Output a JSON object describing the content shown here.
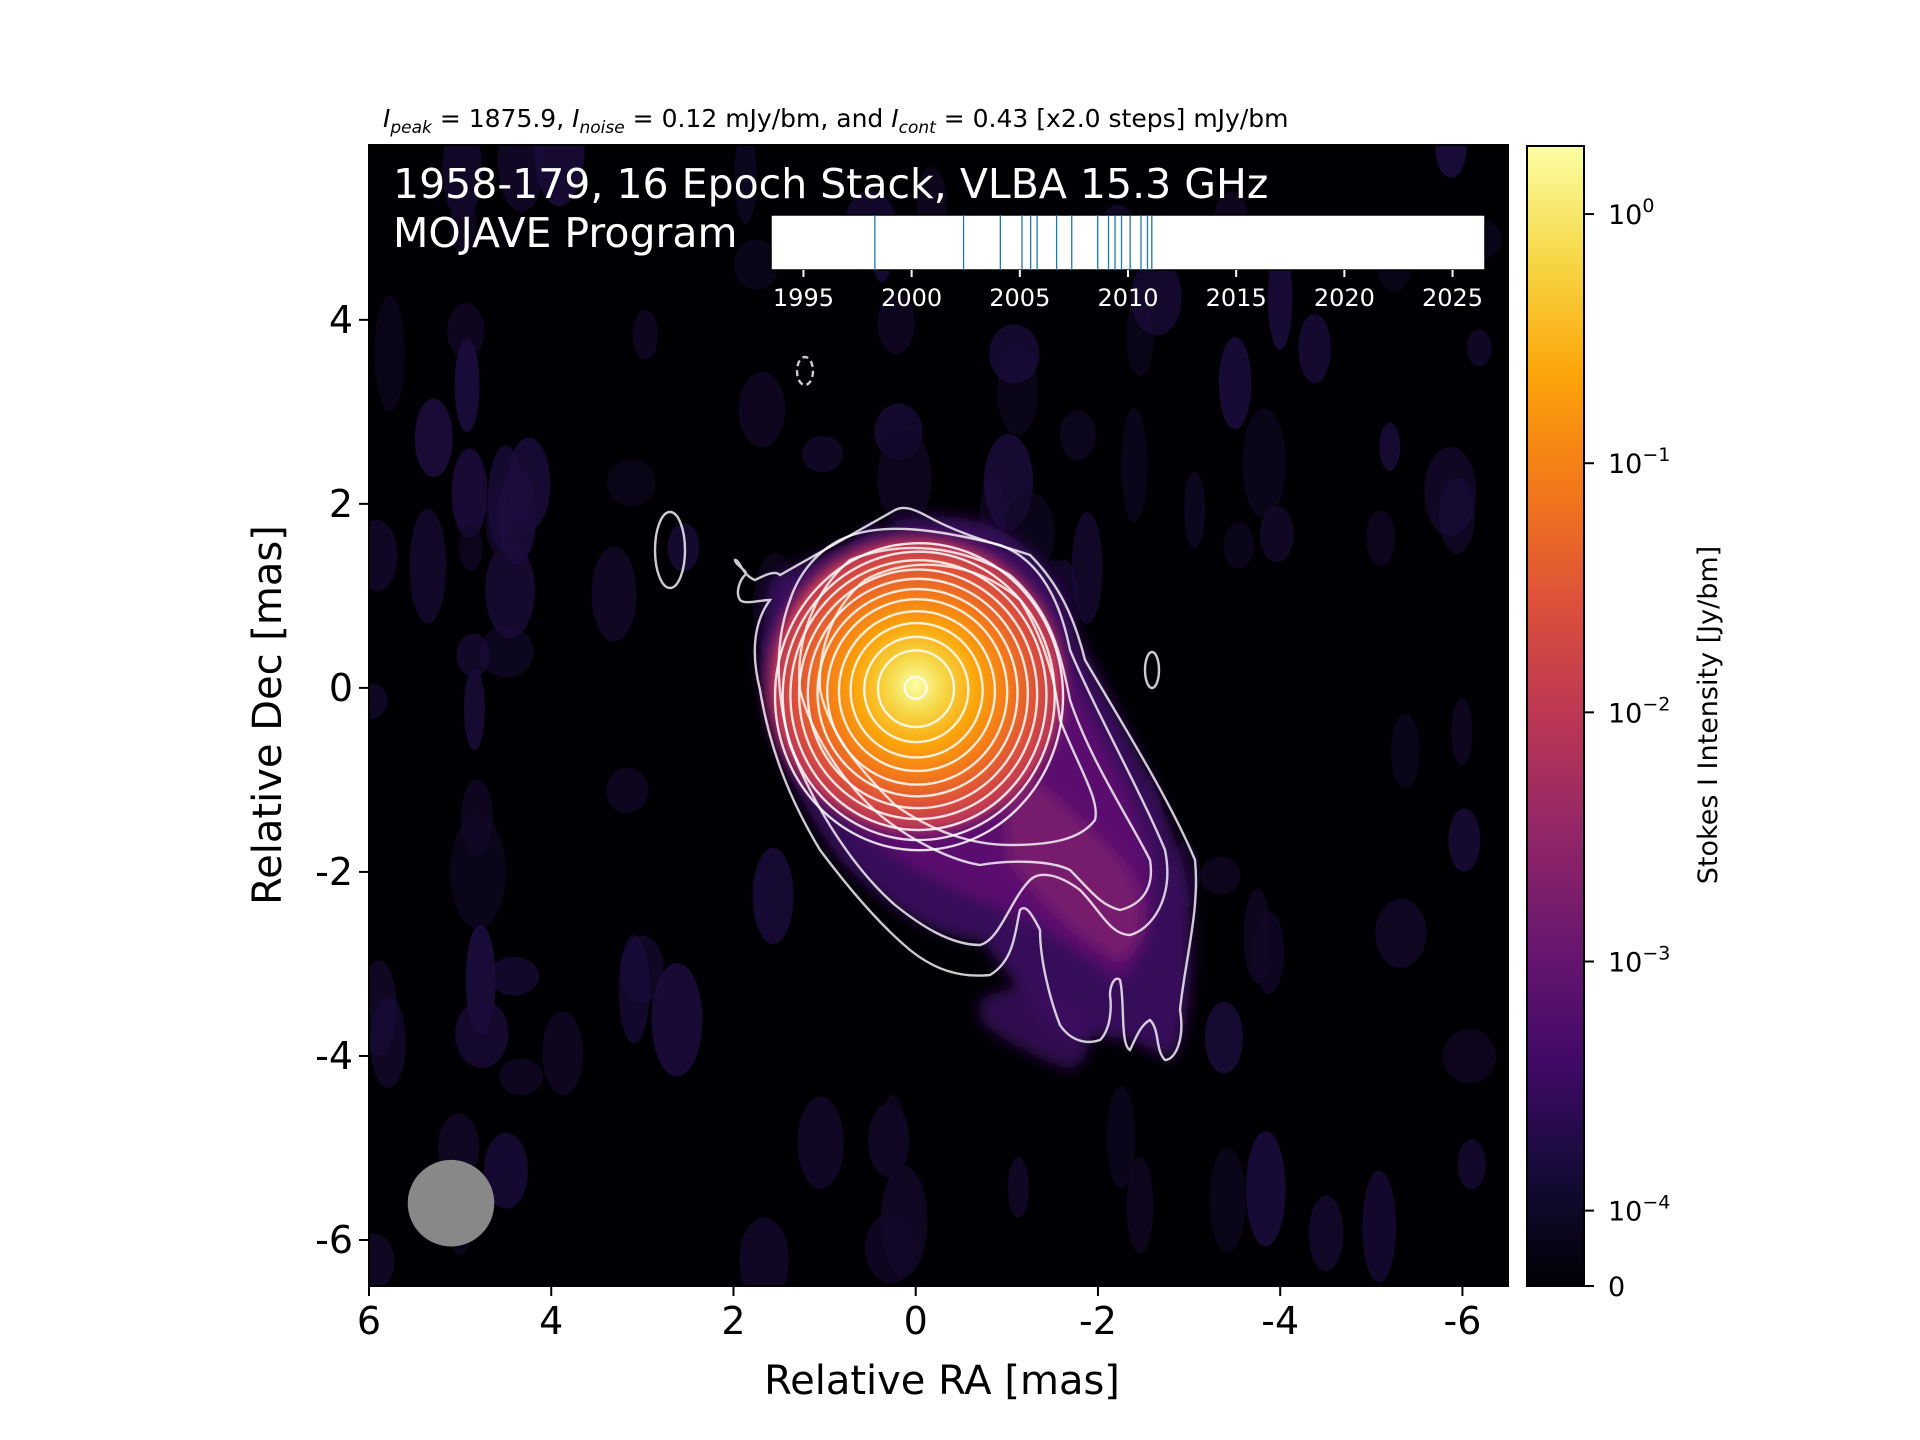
{
  "chart_data": {
    "type": "heatmap",
    "title": {
      "peak_label": "peak",
      "peak_value": "1875.9",
      "noise_label": "noise",
      "noise_value": "0.12",
      "cont_label": "cont",
      "cont_value": "0.43",
      "cont_steps": "[x2.0 steps]",
      "unit": "mJy/bm"
    },
    "annotation": {
      "line1": "1958-179, 16 Epoch Stack, VLBA 15.3 GHz",
      "line2": "MOJAVE Program"
    },
    "xlabel": "Relative RA [mas]",
    "ylabel": "Relative Dec [mas]",
    "xlim": [
      6,
      -6.5
    ],
    "ylim": [
      -6.5,
      5.9
    ],
    "xticks": [
      6,
      4,
      2,
      0,
      -2,
      -4,
      -6
    ],
    "xtick_labels": [
      "6",
      "4",
      "2",
      "0",
      "-2",
      "-4",
      "-6"
    ],
    "yticks": [
      4,
      2,
      0,
      -2,
      -4,
      -6
    ],
    "ytick_labels": [
      "4",
      "2",
      "0",
      "-2",
      "-4",
      "-6"
    ],
    "colorbar": {
      "label": "Stokes I Intensity [Jy/bm]",
      "scale": "log",
      "range": [
        0,
        1.8759
      ],
      "ticks": [
        {
          "value": 1,
          "base": "10",
          "exp": "0"
        },
        {
          "value": 0.1,
          "base": "10",
          "exp": "−1"
        },
        {
          "value": 0.01,
          "base": "10",
          "exp": "−2"
        },
        {
          "value": 0.001,
          "base": "10",
          "exp": "−3"
        },
        {
          "value": 0.0001,
          "base": "10",
          "exp": "−4"
        },
        {
          "value": 0,
          "base": "0",
          "exp": ""
        }
      ],
      "colormap": "inferno"
    },
    "epoch_timeline": {
      "xlim": [
        1993.5,
        2026.5
      ],
      "ticks": [
        1995,
        2000,
        2005,
        2010,
        2015,
        2020,
        2025
      ],
      "tick_labels": [
        "1995",
        "2000",
        "2005",
        "2010",
        "2015",
        "2020",
        "2025"
      ],
      "epochs": [
        1998.3,
        2002.4,
        2004.1,
        2005.1,
        2005.5,
        2005.8,
        2006.7,
        2007.4,
        2008.6,
        2009.1,
        2009.4,
        2009.7,
        2010.1,
        2010.6,
        2010.9,
        2011.1
      ]
    },
    "peak_intensity_jy": 1.8759,
    "contour_base_mjy": 0.43,
    "contour_step_factor": 2.0,
    "beam": {
      "ra_center_mas": 5.1,
      "dec_center_mas": -5.6,
      "major_mas": 0.95,
      "minor_mas": 0.95
    },
    "colors": {
      "contour": "#ffffff",
      "beam": "#888888",
      "epoch_line": "#1f77b4",
      "background": "#000004"
    }
  }
}
